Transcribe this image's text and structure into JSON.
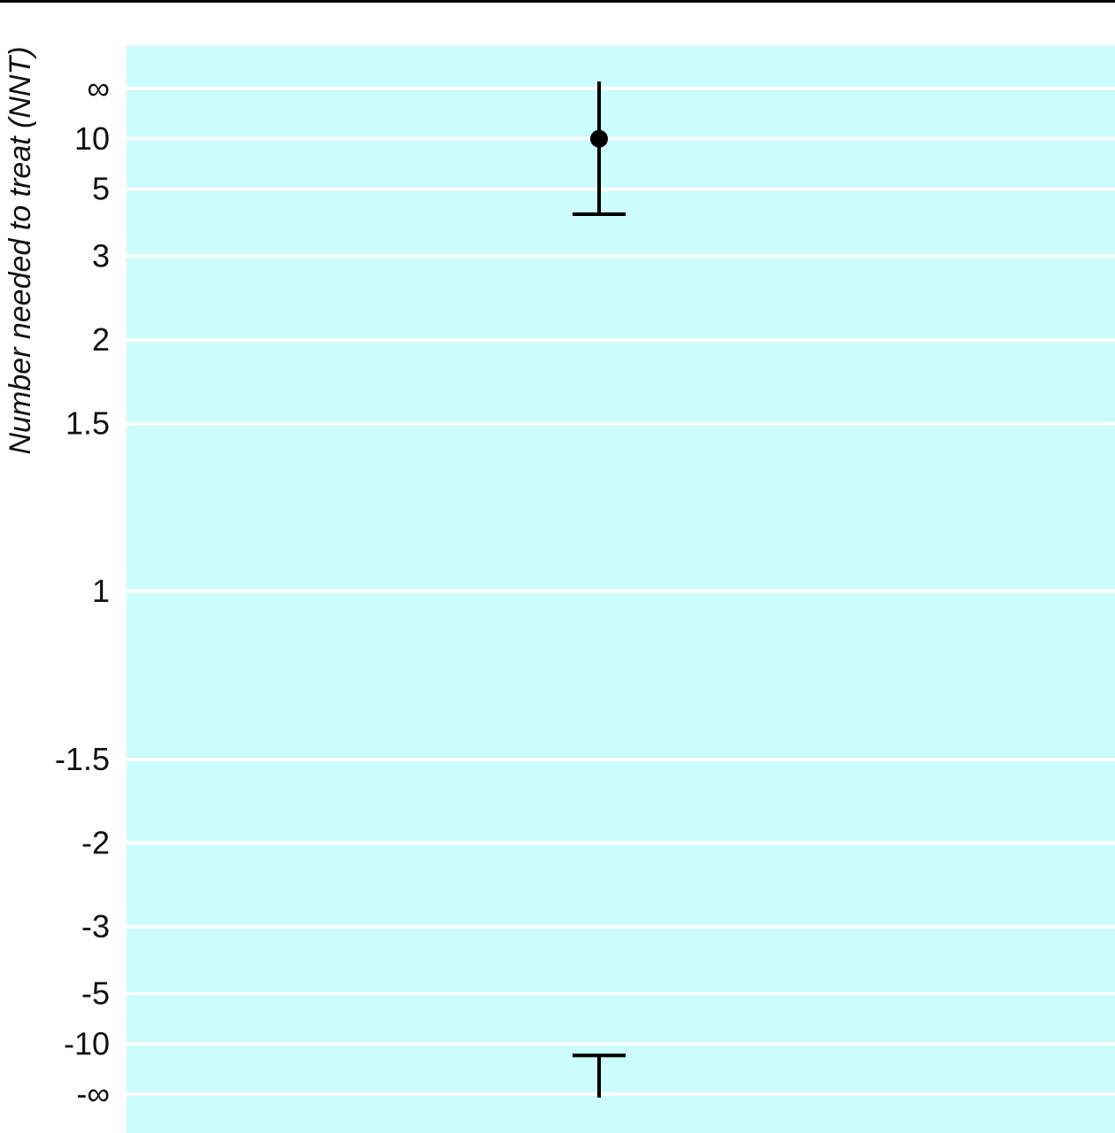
{
  "chart_data": {
    "type": "scatter",
    "ylabel": "Number needed to treat (NNT)",
    "y_scale": "reciprocal",
    "y_ticks": [
      {
        "label": "∞",
        "value": "Infinity"
      },
      {
        "label": "10",
        "value": 10
      },
      {
        "label": "5",
        "value": 5
      },
      {
        "label": "3",
        "value": 3
      },
      {
        "label": "2",
        "value": 2
      },
      {
        "label": "1.5",
        "value": 1.5
      },
      {
        "label": "1",
        "value": 1
      },
      {
        "label": "-1.5",
        "value": -1.5
      },
      {
        "label": "-2",
        "value": -2
      },
      {
        "label": "-3",
        "value": -3
      },
      {
        "label": "-5",
        "value": -5
      },
      {
        "label": "-10",
        "value": -10
      },
      {
        "label": "-∞",
        "value": "-Infinity"
      }
    ],
    "points": [
      {
        "nnt": 10,
        "ci_upper_end": "4",
        "ci_lower_end": "-13"
      }
    ],
    "grid": true,
    "legend": "none",
    "colors": {
      "background": "#ccfcfc",
      "gridline": "#ffffff",
      "marker": "#000000"
    }
  }
}
